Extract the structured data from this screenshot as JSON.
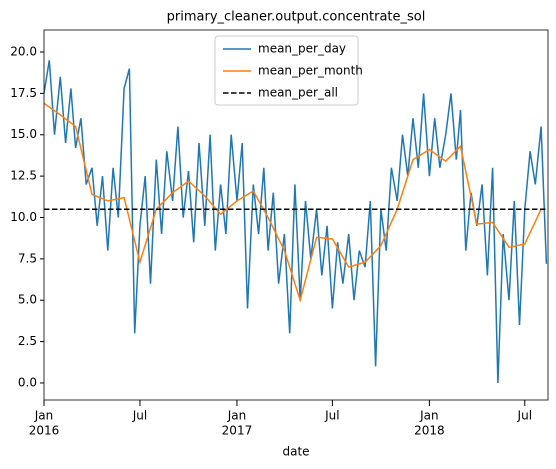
{
  "chart_data": {
    "type": "line",
    "title": "primary_cleaner.output.concentrate_sol",
    "xlabel": "date",
    "xlim": [
      "2016-01-01",
      "2018-08-14"
    ],
    "ylim": [
      -1.03,
      21.33
    ],
    "yticks": [
      {
        "value": 0,
        "label": "0.0"
      },
      {
        "value": 2.5,
        "label": "2.5"
      },
      {
        "value": 5,
        "label": "5.0"
      },
      {
        "value": 7.5,
        "label": "7.5"
      },
      {
        "value": 10,
        "label": "10.0"
      },
      {
        "value": 12.5,
        "label": "12.5"
      },
      {
        "value": 15,
        "label": "15.0"
      },
      {
        "value": 17.5,
        "label": "17.5"
      },
      {
        "value": 20,
        "label": "20.0"
      }
    ],
    "xticks": [
      {
        "value": "2016-01-01",
        "label": "Jan",
        "sublabel": "2016"
      },
      {
        "value": "2016-07-01",
        "label": "Jul"
      },
      {
        "value": "2017-01-01",
        "label": "Jan",
        "sublabel": "2017"
      },
      {
        "value": "2017-07-01",
        "label": "Jul"
      },
      {
        "value": "2018-01-01",
        "label": "Jan",
        "sublabel": "2018"
      },
      {
        "value": "2018-07-01",
        "label": "Jul"
      }
    ],
    "legend": "upper center",
    "series": [
      {
        "name": "mean_per_day",
        "color": "#1f77b4",
        "x": [
          "2016-01-01",
          "2016-01-11",
          "2016-01-21",
          "2016-02-01",
          "2016-02-11",
          "2016-02-21",
          "2016-03-01",
          "2016-03-11",
          "2016-03-21",
          "2016-04-01",
          "2016-04-11",
          "2016-04-21",
          "2016-05-01",
          "2016-05-11",
          "2016-05-21",
          "2016-06-01",
          "2016-06-11",
          "2016-06-21",
          "2016-07-01",
          "2016-07-11",
          "2016-07-21",
          "2016-08-01",
          "2016-08-11",
          "2016-08-21",
          "2016-09-01",
          "2016-09-11",
          "2016-09-21",
          "2016-10-01",
          "2016-10-11",
          "2016-10-21",
          "2016-11-01",
          "2016-11-11",
          "2016-11-21",
          "2016-12-01",
          "2016-12-11",
          "2016-12-21",
          "2017-01-01",
          "2017-01-11",
          "2017-01-21",
          "2017-02-01",
          "2017-02-11",
          "2017-02-21",
          "2017-03-01",
          "2017-03-11",
          "2017-03-21",
          "2017-04-01",
          "2017-04-11",
          "2017-04-21",
          "2017-05-01",
          "2017-05-11",
          "2017-05-21",
          "2017-06-01",
          "2017-06-11",
          "2017-06-21",
          "2017-07-01",
          "2017-07-11",
          "2017-07-21",
          "2017-08-01",
          "2017-08-11",
          "2017-08-21",
          "2017-09-01",
          "2017-09-11",
          "2017-09-21",
          "2017-10-01",
          "2017-10-11",
          "2017-10-21",
          "2017-11-01",
          "2017-11-11",
          "2017-11-21",
          "2017-12-01",
          "2017-12-11",
          "2017-12-21",
          "2018-01-01",
          "2018-01-11",
          "2018-01-21",
          "2018-02-01",
          "2018-02-11",
          "2018-02-21",
          "2018-03-01",
          "2018-03-11",
          "2018-03-21",
          "2018-04-01",
          "2018-04-11",
          "2018-04-21",
          "2018-05-01",
          "2018-05-11",
          "2018-05-21",
          "2018-06-01",
          "2018-06-11",
          "2018-06-21",
          "2018-07-01",
          "2018-07-11",
          "2018-07-21",
          "2018-08-01",
          "2018-08-11"
        ],
        "values": [
          17.5,
          19.5,
          15.0,
          18.5,
          14.5,
          17.8,
          14.2,
          16.0,
          12.0,
          13.0,
          9.5,
          12.5,
          8.0,
          13.0,
          10.0,
          17.8,
          19.0,
          3.0,
          9.5,
          12.5,
          6.0,
          13.5,
          9.0,
          14.0,
          11.0,
          15.5,
          10.0,
          12.8,
          8.5,
          14.5,
          9.5,
          15.0,
          8.0,
          12.0,
          9.0,
          15.0,
          11.0,
          14.5,
          4.5,
          12.0,
          9.0,
          13.0,
          8.0,
          11.5,
          6.0,
          9.0,
          3.0,
          12.0,
          5.0,
          11.0,
          7.5,
          10.5,
          6.5,
          9.5,
          4.5,
          8.5,
          6.0,
          9.0,
          5.0,
          8.0,
          7.0,
          11.0,
          1.0,
          10.5,
          8.0,
          13.0,
          11.0,
          15.0,
          12.5,
          16.0,
          13.0,
          17.5,
          12.5,
          16.0,
          13.0,
          15.0,
          17.5,
          13.5,
          16.5,
          8.0,
          11.5,
          9.5,
          12.0,
          6.5,
          13.0,
          0.0,
          9.0,
          5.0,
          11.0,
          3.5,
          10.5,
          14.0,
          12.0,
          15.5,
          7.2
        ]
      },
      {
        "name": "mean_per_month",
        "color": "#ff7f0e",
        "x": [
          "2016-01",
          "2016-02",
          "2016-03",
          "2016-04",
          "2016-05",
          "2016-06",
          "2016-07",
          "2016-08",
          "2016-09",
          "2016-10",
          "2016-11",
          "2016-12",
          "2017-01",
          "2017-02",
          "2017-03",
          "2017-04",
          "2017-05",
          "2017-06",
          "2017-07",
          "2017-08",
          "2017-09",
          "2017-10",
          "2017-11",
          "2017-12",
          "2018-01",
          "2018-02",
          "2018-03",
          "2018-04",
          "2018-05",
          "2018-06",
          "2018-07",
          "2018-08"
        ],
        "values": [
          16.9,
          16.2,
          15.5,
          11.4,
          11.0,
          11.2,
          7.3,
          10.5,
          11.5,
          12.2,
          11.3,
          10.2,
          11.0,
          11.6,
          10.0,
          8.0,
          5.0,
          8.8,
          8.7,
          7.0,
          7.3,
          8.3,
          10.5,
          13.5,
          14.1,
          13.4,
          14.3,
          9.6,
          9.7,
          8.2,
          8.4,
          10.5
        ]
      },
      {
        "name": "mean_per_all",
        "color": "#000000",
        "dashed": true,
        "value": 10.5
      }
    ]
  }
}
